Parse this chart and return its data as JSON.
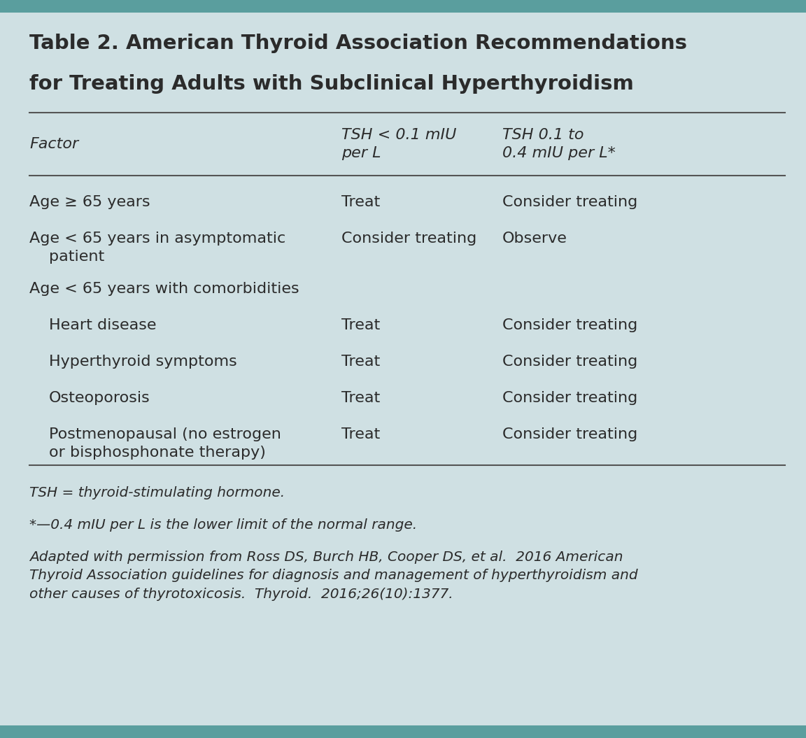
{
  "bg_color": "#cfe0e3",
  "header_bar_color": "#5a9e9e",
  "title_line1": "Table 2. American Thyroid Association Recommendations",
  "title_line2": "for Treating Adults with Subclinical Hyperthyroidism",
  "col_headers": [
    [
      "TSH < 0.1 mIU",
      "per L"
    ],
    [
      "TSH 0.1 to",
      "0.4 mIU per L*"
    ]
  ],
  "factor_label": "Factor",
  "rows": [
    {
      "factor": "Age ≥ 65 years",
      "factor_line2": null,
      "indent": false,
      "tsh_low": "Treat",
      "tsh_high": "Consider treating"
    },
    {
      "factor": "Age < 65 years in asymptomatic",
      "factor_line2": "patient",
      "indent": false,
      "tsh_low": "Consider treating",
      "tsh_high": "Observe"
    },
    {
      "factor": "Age < 65 years with comorbidities",
      "factor_line2": null,
      "indent": false,
      "tsh_low": "",
      "tsh_high": ""
    },
    {
      "factor": "Heart disease",
      "factor_line2": null,
      "indent": true,
      "tsh_low": "Treat",
      "tsh_high": "Consider treating"
    },
    {
      "factor": "Hyperthyroid symptoms",
      "factor_line2": null,
      "indent": true,
      "tsh_low": "Treat",
      "tsh_high": "Consider treating"
    },
    {
      "factor": "Osteoporosis",
      "factor_line2": null,
      "indent": true,
      "tsh_low": "Treat",
      "tsh_high": "Consider treating"
    },
    {
      "factor": "Postmenopausal (no estrogen",
      "factor_line2": "or bisphosphonate therapy)",
      "indent": true,
      "tsh_low": "Treat",
      "tsh_high": "Consider treating"
    }
  ],
  "footnotes": [
    "TSH = thyroid-stimulating hormone.",
    "*—0.4 mIU per L is the lower limit of the normal range.",
    "Adapted with permission from Ross DS, Burch HB, Cooper DS, et al.  2016 American\nThyroid Association guidelines for diagnosis and management of hyperthyroidism and\nother causes of thyrotoxicosis.  Thyroid.  2016;26(10):1377."
  ],
  "text_color": "#2b2b2b",
  "title_fontsize": 21,
  "header_fontsize": 16,
  "body_fontsize": 16,
  "footnote_fontsize": 14.5
}
